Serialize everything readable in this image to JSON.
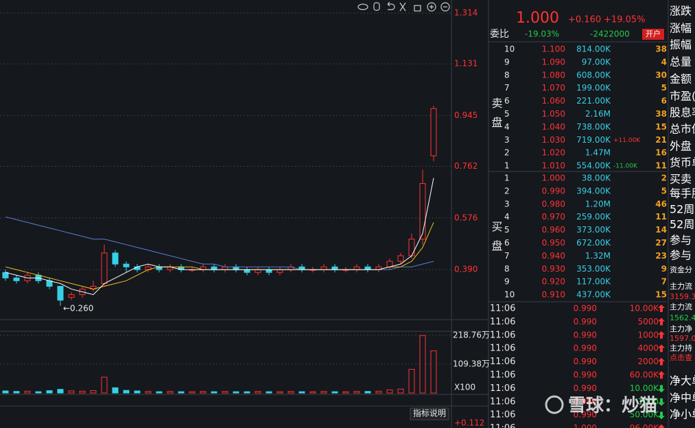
{
  "chart_data": {
    "type": "candlestick",
    "open": [
      0.38,
      0.36,
      0.35,
      0.37,
      0.35,
      0.33,
      0.29,
      0.3,
      0.32,
      0.34,
      0.45,
      0.41,
      0.4,
      0.39,
      0.4,
      0.39,
      0.4,
      0.39,
      0.39,
      0.4,
      0.39,
      0.4,
      0.39,
      0.38,
      0.39,
      0.38,
      0.39,
      0.4,
      0.39,
      0.39,
      0.4,
      0.39,
      0.39,
      0.4,
      0.39,
      0.4,
      0.42,
      0.44,
      0.5,
      0.8
    ],
    "high": [
      0.39,
      0.37,
      0.38,
      0.38,
      0.36,
      0.33,
      0.31,
      0.33,
      0.35,
      0.48,
      0.46,
      0.42,
      0.41,
      0.41,
      0.41,
      0.41,
      0.41,
      0.4,
      0.41,
      0.41,
      0.41,
      0.41,
      0.4,
      0.4,
      0.4,
      0.4,
      0.41,
      0.41,
      0.4,
      0.41,
      0.41,
      0.4,
      0.41,
      0.41,
      0.41,
      0.43,
      0.45,
      0.52,
      0.75,
      0.98
    ],
    "low": [
      0.35,
      0.34,
      0.34,
      0.34,
      0.32,
      0.26,
      0.28,
      0.29,
      0.31,
      0.33,
      0.4,
      0.38,
      0.38,
      0.38,
      0.38,
      0.38,
      0.38,
      0.38,
      0.38,
      0.38,
      0.38,
      0.38,
      0.37,
      0.37,
      0.37,
      0.37,
      0.38,
      0.38,
      0.38,
      0.38,
      0.38,
      0.38,
      0.38,
      0.38,
      0.38,
      0.39,
      0.41,
      0.43,
      0.48,
      0.78
    ],
    "close": [
      0.36,
      0.35,
      0.37,
      0.35,
      0.33,
      0.28,
      0.3,
      0.32,
      0.33,
      0.45,
      0.41,
      0.4,
      0.39,
      0.4,
      0.39,
      0.4,
      0.39,
      0.39,
      0.4,
      0.39,
      0.4,
      0.39,
      0.38,
      0.39,
      0.38,
      0.39,
      0.4,
      0.39,
      0.39,
      0.4,
      0.39,
      0.39,
      0.4,
      0.39,
      0.4,
      0.42,
      0.44,
      0.5,
      0.7,
      0.97
    ],
    "up_color": "#ff3333",
    "down_color": "#36d0e6",
    "lines": [
      {
        "color": "#5b7fd6",
        "values": [
          0.58,
          0.57,
          0.56,
          0.55,
          0.54,
          0.53,
          0.52,
          0.51,
          0.5,
          0.5,
          0.49,
          0.48,
          0.47,
          0.46,
          0.45,
          0.44,
          0.43,
          0.42,
          0.41,
          0.41,
          0.4,
          0.4,
          0.4,
          0.4,
          0.4,
          0.4,
          0.4,
          0.39,
          0.39,
          0.39,
          0.39,
          0.39,
          0.39,
          0.39,
          0.39,
          0.39,
          0.4,
          0.4,
          0.41,
          0.42
        ]
      },
      {
        "color": "#f0c020",
        "values": [
          0.4,
          0.39,
          0.38,
          0.37,
          0.36,
          0.35,
          0.34,
          0.33,
          0.32,
          0.33,
          0.34,
          0.35,
          0.37,
          0.39,
          0.4,
          0.4,
          0.4,
          0.4,
          0.39,
          0.39,
          0.39,
          0.39,
          0.39,
          0.39,
          0.39,
          0.39,
          0.39,
          0.39,
          0.39,
          0.39,
          0.39,
          0.39,
          0.39,
          0.39,
          0.39,
          0.4,
          0.4,
          0.42,
          0.47,
          0.56
        ]
      },
      {
        "color": "#ffffff",
        "values": [
          0.38,
          0.37,
          0.36,
          0.36,
          0.35,
          0.34,
          0.32,
          0.31,
          0.3,
          0.34,
          0.36,
          0.38,
          0.4,
          0.41,
          0.4,
          0.4,
          0.39,
          0.39,
          0.39,
          0.39,
          0.39,
          0.39,
          0.39,
          0.39,
          0.39,
          0.39,
          0.39,
          0.39,
          0.39,
          0.39,
          0.39,
          0.39,
          0.39,
          0.39,
          0.39,
          0.4,
          0.41,
          0.44,
          0.52,
          0.72
        ]
      }
    ],
    "ylim": [
      0.21,
      1.361
    ],
    "yticks": [
      1.314,
      1.131,
      0.945,
      0.762,
      0.576,
      {
        "value": 0.39,
        "label": "0.390"
      }
    ],
    "grid": true,
    "annotation": {
      "value": 0.26,
      "label": "←0.260"
    },
    "volume": {
      "values": [
        8,
        6,
        7,
        5,
        9,
        14,
        8,
        7,
        9,
        60,
        20,
        10,
        8,
        6,
        5,
        6,
        5,
        5,
        6,
        5,
        6,
        5,
        5,
        6,
        5,
        5,
        6,
        5,
        5,
        6,
        5,
        5,
        6,
        6,
        7,
        12,
        15,
        90,
        218,
        160
      ],
      "ylim": [
        0,
        234
      ],
      "yticks": [
        {
          "value": 218.76,
          "label": "218.76万"
        },
        {
          "value": 109.38,
          "label": "109.38万"
        }
      ],
      "unit_label": "X100"
    },
    "indicator": {
      "button": "指标说明",
      "value_label": "+0.112"
    }
  },
  "quote": {
    "price": "1.000",
    "change": "+0.160",
    "change_pct": "+19.05%"
  },
  "ratio": {
    "label": "委比",
    "pct": "-19.03%",
    "diff": "-2422000",
    "button": "开户"
  },
  "order_book": {
    "sell_label": "卖盘",
    "buy_label": "买盘",
    "sell": [
      {
        "level": "10",
        "price": "1.100",
        "volume": "814.00K",
        "count": "38"
      },
      {
        "level": "9",
        "price": "1.090",
        "volume": "97.00K",
        "count": "4"
      },
      {
        "level": "8",
        "price": "1.080",
        "volume": "608.00K",
        "count": "30"
      },
      {
        "level": "7",
        "price": "1.070",
        "volume": "199.00K",
        "count": "5"
      },
      {
        "level": "6",
        "price": "1.060",
        "volume": "221.00K",
        "count": "6"
      },
      {
        "level": "5",
        "price": "1.050",
        "volume": "2.16M",
        "count": "38"
      },
      {
        "level": "4",
        "price": "1.040",
        "volume": "738.00K",
        "count": "15"
      },
      {
        "level": "3",
        "price": "1.030",
        "volume": "719.00K",
        "change": "+11.00K",
        "count": "21"
      },
      {
        "level": "2",
        "price": "1.020",
        "volume": "1.47M",
        "count": "16"
      },
      {
        "level": "1",
        "price": "1.010",
        "volume": "554.00K",
        "change": "-11.00K",
        "count": "11"
      }
    ],
    "buy": [
      {
        "level": "1",
        "price": "1.000",
        "volume": "38.00K",
        "count": "2"
      },
      {
        "level": "2",
        "price": "0.990",
        "volume": "394.00K",
        "count": "5"
      },
      {
        "level": "3",
        "price": "0.980",
        "volume": "1.20M",
        "count": "46"
      },
      {
        "level": "4",
        "price": "0.970",
        "volume": "259.00K",
        "count": "11"
      },
      {
        "level": "5",
        "price": "0.960",
        "volume": "373.00K",
        "count": "14"
      },
      {
        "level": "6",
        "price": "0.950",
        "volume": "672.00K",
        "count": "27"
      },
      {
        "level": "7",
        "price": "0.940",
        "volume": "1.32M",
        "count": "23"
      },
      {
        "level": "8",
        "price": "0.930",
        "volume": "353.00K",
        "count": "9"
      },
      {
        "level": "9",
        "price": "0.920",
        "volume": "117.00K",
        "count": "7"
      },
      {
        "level": "10",
        "price": "0.910",
        "volume": "437.00K",
        "count": "15"
      }
    ]
  },
  "trades": [
    {
      "time": "11:06",
      "price": "0.990",
      "volume": "10.00K",
      "color": "#ff3333"
    },
    {
      "time": "11:06",
      "price": "0.990",
      "volume": "5000",
      "color": "#ff3333"
    },
    {
      "time": "11:06",
      "price": "0.990",
      "volume": "1000",
      "color": "#ff3333"
    },
    {
      "time": "11:06",
      "price": "0.990",
      "volume": "4000",
      "color": "#ff3333"
    },
    {
      "time": "11:06",
      "price": "0.990",
      "volume": "2000",
      "color": "#ff3333"
    },
    {
      "time": "11:06",
      "price": "0.990",
      "volume": "60.00K",
      "color": "#ff3333"
    },
    {
      "time": "11:06",
      "price": "0.990",
      "volume": "10.00K",
      "color": "#22cc44"
    },
    {
      "time": "11:06",
      "price": "0.990",
      "volume": "1000",
      "color": "#22cc44"
    },
    {
      "time": "11:06",
      "price": "0.990",
      "volume": "50.00K",
      "color": "#22cc44"
    },
    {
      "time": "11:06",
      "price": "1.000",
      "volume": "96.00K",
      "color": "#ff3333"
    }
  ],
  "side_labels": [
    {
      "text": "涨跌",
      "color": "#ffffff"
    },
    {
      "text": "涨幅",
      "color": "#ffffff"
    },
    {
      "text": "振幅",
      "color": "#ffffff"
    },
    {
      "text": "总量",
      "color": "#ffffff"
    },
    {
      "text": "金额",
      "color": "#ffffff"
    },
    {
      "text": "市盈(",
      "color": "#ffffff"
    },
    {
      "text": "股息率",
      "color": "#ffffff"
    },
    {
      "text": "总市值",
      "color": "#ffffff"
    },
    {
      "text": "外盘",
      "color": "#ffffff"
    },
    {
      "text": "货币单",
      "color": "#ffffff"
    },
    {
      "text": "买卖",
      "color": "#ffffff"
    },
    {
      "text": "每手股",
      "color": "#ffffff"
    },
    {
      "text": "52周最",
      "color": "#ffffff"
    },
    {
      "text": "52周最",
      "color": "#ffffff"
    },
    {
      "text": "参与",
      "color": "#ffffff"
    },
    {
      "text": "参与",
      "color": "#ffffff"
    },
    {
      "text": "资金分",
      "color": "#ffffff"
    },
    {
      "text": "主力流",
      "color": "#ffffff"
    },
    {
      "text": "3159.3",
      "color": "#ff3333"
    },
    {
      "text": "主力流",
      "color": "#ffffff"
    },
    {
      "text": "1562.4",
      "color": "#22cc44"
    },
    {
      "text": "主力净",
      "color": "#ffffff"
    },
    {
      "text": "1597.0",
      "color": "#ff3333"
    },
    {
      "text": "主力持",
      "color": "#ffffff"
    },
    {
      "text": "点击查",
      "color": "#ff3333"
    },
    {
      "text": "净大单",
      "color": "#ffffff"
    },
    {
      "text": "净中单",
      "color": "#ffffff"
    },
    {
      "text": "净小单",
      "color": "#ffffff"
    }
  ],
  "watermark": "雪球：炒猫"
}
